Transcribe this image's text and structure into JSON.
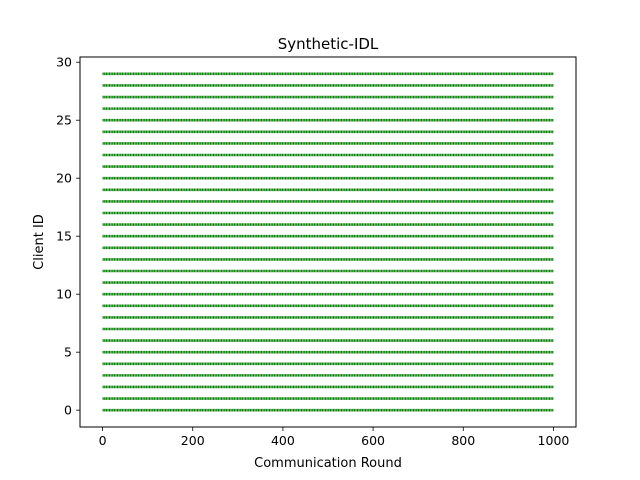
{
  "chart_data": {
    "type": "scatter",
    "title": "Synthetic-IDL",
    "xlabel": "Communication Round",
    "ylabel": "Client ID",
    "xlim": [
      -50,
      1050
    ],
    "ylim": [
      -1.45,
      30.45
    ],
    "xticks": [
      0,
      200,
      400,
      600,
      800,
      1000
    ],
    "yticks": [
      0,
      5,
      10,
      15,
      20,
      25,
      30
    ],
    "grid": false,
    "marker_color": "#007f00",
    "series": [
      {
        "x_range": [
          0,
          1000
        ],
        "x_step": 1,
        "clients": [
          0,
          1,
          2,
          3,
          4,
          5,
          6,
          7,
          8,
          9,
          10,
          11,
          12,
          13,
          14,
          15,
          16,
          17,
          18,
          19,
          20,
          21,
          22,
          23,
          24,
          25,
          26,
          27,
          28,
          29
        ]
      }
    ]
  }
}
